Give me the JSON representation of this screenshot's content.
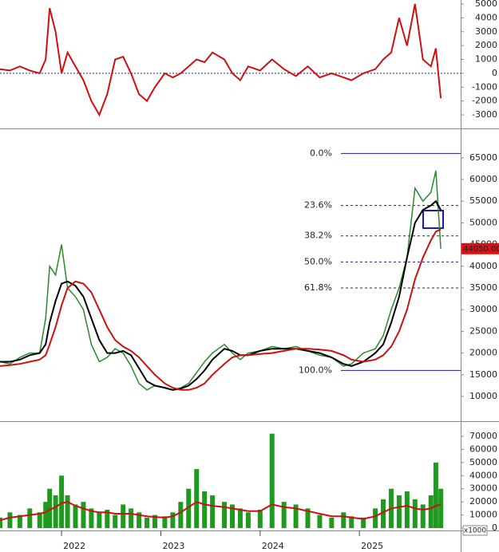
{
  "chart_data": [
    {
      "type": "line",
      "zero_line": true,
      "x": [
        2021.38,
        2021.48,
        2021.58,
        2021.68,
        2021.78,
        2021.84,
        2021.88,
        2021.94,
        2022.0,
        2022.06,
        2022.14,
        2022.22,
        2022.3,
        2022.38,
        2022.46,
        2022.54,
        2022.62,
        2022.7,
        2022.78,
        2022.86,
        2022.94,
        2023.04,
        2023.12,
        2023.2,
        2023.28,
        2023.36,
        2023.44,
        2023.52,
        2023.64,
        2023.72,
        2023.8,
        2023.88,
        2024.0,
        2024.12,
        2024.24,
        2024.36,
        2024.48,
        2024.6,
        2024.72,
        2024.84,
        2024.92,
        2025.04,
        2025.16,
        2025.24,
        2025.32,
        2025.4,
        2025.48,
        2025.56,
        2025.64,
        2025.72,
        2025.77,
        2025.82
      ],
      "xlim": [
        2021.38,
        2026.02
      ],
      "ylim": [
        -3920,
        5290
      ],
      "yticks": [
        5000,
        4000,
        3000,
        2000,
        1000,
        0,
        -1000,
        -2000,
        -3000
      ],
      "series": [
        {
          "color": "#cc1111",
          "values": [
            300,
            200,
            500,
            200,
            0,
            1000,
            4700,
            3000,
            0,
            1500,
            500,
            -500,
            -2000,
            -3000,
            -1500,
            1000,
            1200,
            0,
            -1500,
            -2000,
            -1000,
            0,
            -300,
            0,
            500,
            1000,
            800,
            1500,
            1000,
            0,
            -500,
            500,
            200,
            1000,
            300,
            -200,
            500,
            -300,
            0,
            -300,
            -500,
            0,
            300,
            1000,
            1500,
            4000,
            2000,
            5000,
            1000,
            500,
            1800,
            -1800
          ]
        }
      ]
    },
    {
      "type": "line",
      "x": [
        2021.38,
        2021.48,
        2021.58,
        2021.68,
        2021.78,
        2021.84,
        2021.88,
        2021.94,
        2022.0,
        2022.06,
        2022.14,
        2022.22,
        2022.3,
        2022.38,
        2022.46,
        2022.54,
        2022.62,
        2022.7,
        2022.78,
        2022.86,
        2022.94,
        2023.04,
        2023.12,
        2023.2,
        2023.28,
        2023.36,
        2023.44,
        2023.52,
        2023.64,
        2023.72,
        2023.8,
        2023.88,
        2024.0,
        2024.12,
        2024.24,
        2024.36,
        2024.48,
        2024.6,
        2024.72,
        2024.84,
        2024.92,
        2025.04,
        2025.16,
        2025.24,
        2025.32,
        2025.4,
        2025.48,
        2025.56,
        2025.64,
        2025.72,
        2025.77,
        2025.82
      ],
      "xlim": [
        2021.38,
        2026.02
      ],
      "ylim": [
        4300,
        71400
      ],
      "yticks": [
        65000,
        60000,
        55000,
        50000,
        45000,
        40000,
        35000,
        30000,
        25000,
        20000,
        15000,
        10000
      ],
      "series": [
        {
          "color": "#2a8a2a",
          "values": [
            18000,
            17500,
            19000,
            20000,
            20000,
            28000,
            40000,
            38000,
            45000,
            35000,
            33000,
            30000,
            22000,
            18000,
            19000,
            21000,
            20000,
            17000,
            13000,
            11500,
            12500,
            12000,
            11500,
            12000,
            13000,
            15500,
            18000,
            20000,
            22000,
            20000,
            18500,
            20000,
            20500,
            21500,
            21000,
            21500,
            20500,
            19500,
            19000,
            17000,
            17500,
            20000,
            21000,
            24000,
            30000,
            35000,
            42000,
            58000,
            55000,
            57000,
            62000,
            44050
          ]
        },
        {
          "color": "#000000",
          "values": [
            18000,
            18000,
            18500,
            19500,
            20000,
            22000,
            27000,
            32000,
            36000,
            36500,
            35500,
            33000,
            28000,
            23000,
            20000,
            20000,
            20500,
            19500,
            16500,
            13500,
            12500,
            12000,
            11500,
            11800,
            12500,
            14000,
            16000,
            18500,
            21000,
            20500,
            19500,
            19500,
            20500,
            21000,
            21000,
            21000,
            20500,
            20000,
            19000,
            17500,
            17000,
            18000,
            20000,
            22000,
            27000,
            33000,
            42000,
            50000,
            53000,
            54000,
            55000,
            53000
          ]
        },
        {
          "color": "#cc1111",
          "values": [
            17000,
            17200,
            17500,
            18000,
            18500,
            19500,
            22000,
            26000,
            31000,
            35000,
            36500,
            36000,
            34000,
            30000,
            26000,
            23000,
            21500,
            20500,
            19000,
            17000,
            15000,
            13000,
            12000,
            11500,
            11500,
            12000,
            13000,
            15000,
            17500,
            19000,
            19500,
            19500,
            19800,
            20000,
            20500,
            21000,
            21000,
            20800,
            20500,
            19500,
            18500,
            18000,
            18500,
            19500,
            21500,
            25000,
            30000,
            37000,
            42000,
            46000,
            48000,
            48500
          ]
        }
      ],
      "last_label": {
        "value": 44050,
        "label": "44050.00"
      },
      "fib_levels": [
        {
          "label": "0.0%",
          "value": 66000,
          "style": "solid"
        },
        {
          "label": "23.6%",
          "value": 54000,
          "style": "dashed"
        },
        {
          "label": "38.2%",
          "value": 47000,
          "style": "dashed"
        },
        {
          "label": "50.0%",
          "value": 41000,
          "style": "dashed"
        },
        {
          "label": "61.8%",
          "value": 35000,
          "style": "dashed"
        },
        {
          "label": "100.0%",
          "value": 16000,
          "style": "solid"
        }
      ]
    },
    {
      "type": "bar",
      "unit_label": "x1000",
      "x": [
        2021.38,
        2021.48,
        2021.58,
        2021.68,
        2021.78,
        2021.84,
        2021.88,
        2021.94,
        2022.0,
        2022.06,
        2022.14,
        2022.22,
        2022.3,
        2022.38,
        2022.46,
        2022.54,
        2022.62,
        2022.7,
        2022.78,
        2022.86,
        2022.94,
        2023.04,
        2023.12,
        2023.2,
        2023.28,
        2023.36,
        2023.44,
        2023.52,
        2023.64,
        2023.72,
        2023.8,
        2023.88,
        2024.0,
        2024.12,
        2024.24,
        2024.36,
        2024.48,
        2024.6,
        2024.72,
        2024.84,
        2024.92,
        2025.04,
        2025.16,
        2025.24,
        2025.32,
        2025.4,
        2025.48,
        2025.56,
        2025.64,
        2025.72,
        2025.77,
        2025.82
      ],
      "xlim": [
        2021.38,
        2026.02
      ],
      "ylim": [
        -1800,
        80300
      ],
      "xticks": [
        {
          "value": 2022,
          "label": "2022"
        },
        {
          "value": 2023,
          "label": "2023"
        },
        {
          "value": 2024,
          "label": "2024"
        },
        {
          "value": 2025,
          "label": "2025"
        }
      ],
      "yticks": [
        70000,
        60000,
        50000,
        40000,
        30000,
        20000,
        10000,
        0
      ],
      "series": [
        {
          "kind": "bar",
          "color": "#1e9a1e",
          "values": [
            8000,
            12000,
            10000,
            15000,
            12000,
            20000,
            30000,
            25000,
            40000,
            25000,
            18000,
            20000,
            15000,
            12000,
            14000,
            10000,
            18000,
            15000,
            12000,
            8000,
            10000,
            9000,
            12000,
            20000,
            30000,
            45000,
            28000,
            25000,
            20000,
            18000,
            15000,
            12000,
            14000,
            72000,
            20000,
            18000,
            15000,
            10000,
            8000,
            12000,
            9000,
            8000,
            15000,
            22000,
            30000,
            25000,
            28000,
            22000,
            18000,
            25000,
            50000,
            30000
          ]
        },
        {
          "kind": "line",
          "color": "#cc1111",
          "values": [
            6000,
            8000,
            9000,
            10000,
            11000,
            12000,
            14000,
            16000,
            19000,
            20000,
            17000,
            15000,
            13000,
            12000,
            12000,
            11000,
            11000,
            11000,
            10000,
            9000,
            8500,
            8000,
            9000,
            12000,
            16000,
            20000,
            18000,
            17000,
            16000,
            15000,
            14000,
            13000,
            13000,
            18000,
            16000,
            15000,
            13000,
            11000,
            9000,
            9000,
            8000,
            7000,
            9000,
            12000,
            15000,
            16000,
            17000,
            15000,
            14000,
            15000,
            17000,
            18000
          ]
        }
      ]
    }
  ]
}
